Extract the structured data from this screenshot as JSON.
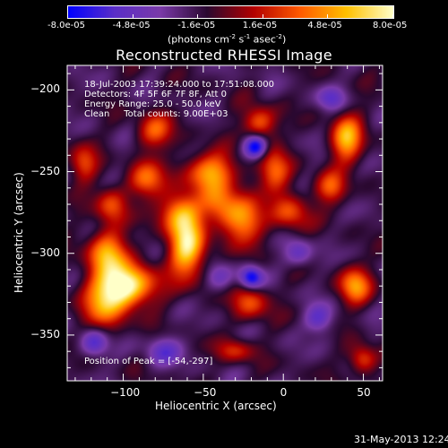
{
  "chart_data": {
    "type": "heatmap",
    "title": "Reconstructed RHESSI Image",
    "xlabel": "Heliocentric X (arcsec)",
    "ylabel": "Heliocentric Y (arcsec)",
    "xlim": [
      -135,
      62
    ],
    "ylim": [
      -378,
      -185
    ],
    "x_ticks": [
      -100,
      -50,
      0,
      50
    ],
    "y_ticks": [
      -200,
      -250,
      -300,
      -350
    ],
    "colorbar": {
      "min": -8e-05,
      "max": 8e-05,
      "tick_labels": [
        "-8.0e-05",
        "-4.8e-05",
        "-1.6e-05",
        "1.6e-05",
        "4.8e-05",
        "8.0e-05"
      ],
      "unit_text": "(photons cm",
      "unit_exp1": "-2",
      "unit_mid": " s",
      "unit_exp2": "-1",
      "unit_end": " asec",
      "unit_exp3": "-2",
      "unit_close": ")"
    },
    "annotations": [
      "18-Jul-2003 17:39:24.000 to 17:51:08.000",
      "Detectors: 4F 5F 6F 7F 8F, Att 0",
      "Energy Range: 25.0 - 50.0 keV",
      "Clean     Total counts: 9.00E+03"
    ],
    "peak_label": "Position of Peak = [-54,-297]",
    "peak": {
      "x": -54,
      "y": -297
    },
    "sources": [
      {
        "x": -97,
        "y": -320,
        "sx": 12,
        "sy": 9,
        "amp": 1.1
      },
      {
        "x": -112,
        "y": -330,
        "sx": 10,
        "sy": 12,
        "amp": 0.7
      },
      {
        "x": -110,
        "y": -300,
        "sx": 9,
        "sy": 10,
        "amp": 0.8
      },
      {
        "x": -108,
        "y": -270,
        "sx": 7,
        "sy": 8,
        "amp": 0.55
      },
      {
        "x": -60,
        "y": -297,
        "sx": 8,
        "sy": 13,
        "amp": 1.0
      },
      {
        "x": -65,
        "y": -275,
        "sx": 9,
        "sy": 9,
        "amp": 0.75
      },
      {
        "x": -45,
        "y": -250,
        "sx": 12,
        "sy": 8,
        "amp": 0.75
      },
      {
        "x": -40,
        "y": -270,
        "sx": 8,
        "sy": 9,
        "amp": 0.6
      },
      {
        "x": -25,
        "y": -280,
        "sx": 9,
        "sy": 10,
        "amp": 0.75
      },
      {
        "x": -20,
        "y": -330,
        "sx": 8,
        "sy": 8,
        "amp": 0.55
      },
      {
        "x": -5,
        "y": -250,
        "sx": 7,
        "sy": 10,
        "amp": 0.6
      },
      {
        "x": 5,
        "y": -275,
        "sx": 8,
        "sy": 8,
        "amp": 0.55
      },
      {
        "x": -80,
        "y": -225,
        "sx": 8,
        "sy": 8,
        "amp": 0.55
      },
      {
        "x": -85,
        "y": -255,
        "sx": 8,
        "sy": 8,
        "amp": 0.6
      },
      {
        "x": -15,
        "y": -220,
        "sx": 7,
        "sy": 7,
        "amp": 0.65
      },
      {
        "x": 40,
        "y": -230,
        "sx": 7,
        "sy": 10,
        "amp": 0.85
      },
      {
        "x": 30,
        "y": -260,
        "sx": 7,
        "sy": 7,
        "amp": 0.55
      },
      {
        "x": 45,
        "y": -320,
        "sx": 7,
        "sy": 8,
        "amp": 0.75
      },
      {
        "x": 50,
        "y": -365,
        "sx": 6,
        "sy": 6,
        "amp": 0.6
      },
      {
        "x": -125,
        "y": -245,
        "sx": 6,
        "sy": 8,
        "amp": 0.5
      },
      {
        "x": -30,
        "y": -360,
        "sx": 8,
        "sy": 5,
        "amp": 0.45
      },
      {
        "x": -17,
        "y": -235,
        "sx": 5,
        "sy": 5,
        "amp": -0.85
      },
      {
        "x": -20,
        "y": -315,
        "sx": 5,
        "sy": 5,
        "amp": -0.8
      },
      {
        "x": -118,
        "y": -355,
        "sx": 6,
        "sy": 6,
        "amp": -0.55
      },
      {
        "x": -75,
        "y": -360,
        "sx": 8,
        "sy": 6,
        "amp": -0.4
      },
      {
        "x": 22,
        "y": -340,
        "sx": 6,
        "sy": 6,
        "amp": -0.45
      },
      {
        "x": 10,
        "y": -300,
        "sx": 6,
        "sy": 6,
        "amp": -0.4
      },
      {
        "x": 30,
        "y": -205,
        "sx": 6,
        "sy": 5,
        "amp": -0.4
      },
      {
        "x": -40,
        "y": -315,
        "sx": 6,
        "sy": 6,
        "amp": -0.3
      }
    ],
    "grid": false,
    "colormap_stops": [
      "#0000ff",
      "#5a2ec8",
      "#7a3aa8",
      "#2a0830",
      "#b30000",
      "#ff5a00",
      "#ffc000",
      "#ffffc8"
    ]
  },
  "footer": {
    "timestamp": "31-May-2013 12:24"
  }
}
